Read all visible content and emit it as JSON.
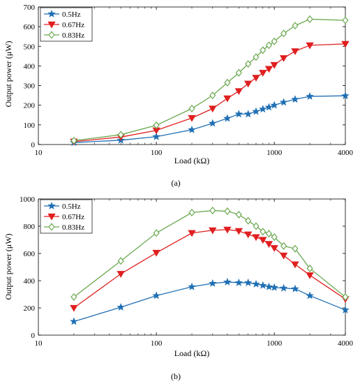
{
  "colors": {
    "s1": "#1f6fb4",
    "s2": "#e01f1f",
    "s3": "#6aa84f",
    "fill2": "#e01f1f",
    "fill3": "#ffffff"
  },
  "chart_data": [
    {
      "type": "line",
      "panel_label": "(a)",
      "xlabel": "Load (kΩ)",
      "ylabel": "Output power (μW)",
      "xscale": "log",
      "xlim": [
        10,
        4000
      ],
      "ylim": [
        0,
        700
      ],
      "xticks": [
        10,
        100,
        1000,
        4000
      ],
      "xtick_labels": [
        "10",
        "100",
        "1000",
        "4000"
      ],
      "yticks": [
        0,
        100,
        200,
        300,
        400,
        500,
        600,
        700
      ],
      "ytick_labels": [
        "0",
        "100",
        "200",
        "300",
        "400",
        "500",
        "600",
        "700"
      ],
      "legend_position": "top-left",
      "x": [
        20,
        50,
        100,
        200,
        300,
        400,
        500,
        600,
        700,
        800,
        900,
        1000,
        1200,
        1500,
        2000,
        4000
      ],
      "series": [
        {
          "name": "0.5Hz",
          "marker": "star",
          "color": "#1f6fb4",
          "values": [
            10,
            22,
            40,
            75,
            108,
            133,
            155,
            155,
            168,
            180,
            190,
            200,
            215,
            230,
            245,
            248
          ]
        },
        {
          "name": "0.67Hz",
          "marker": "triangle-down",
          "color": "#e01f1f",
          "values": [
            15,
            38,
            72,
            135,
            183,
            235,
            272,
            310,
            340,
            365,
            385,
            405,
            440,
            475,
            505,
            512
          ]
        },
        {
          "name": "0.83Hz",
          "marker": "diamond",
          "color": "#6aa84f",
          "values": [
            20,
            50,
            98,
            183,
            250,
            315,
            365,
            410,
            445,
            480,
            505,
            525,
            565,
            605,
            638,
            632
          ]
        }
      ]
    },
    {
      "type": "line",
      "panel_label": "(b)",
      "xlabel": "Load (kΩ)",
      "ylabel": "Output power (μW)",
      "xscale": "log",
      "xlim": [
        10,
        4000
      ],
      "ylim": [
        0,
        1000
      ],
      "xticks": [
        10,
        100,
        1000,
        4000
      ],
      "xtick_labels": [
        "10",
        "100",
        "1000",
        "4000"
      ],
      "yticks": [
        0,
        200,
        400,
        600,
        800,
        1000
      ],
      "ytick_labels": [
        "0",
        "200",
        "400",
        "600",
        "800",
        "1000"
      ],
      "legend_position": "top-left",
      "x": [
        20,
        50,
        100,
        200,
        300,
        400,
        500,
        600,
        700,
        800,
        900,
        1000,
        1200,
        1500,
        2000,
        4000
      ],
      "series": [
        {
          "name": "0.5Hz",
          "marker": "star",
          "color": "#1f6fb4",
          "values": [
            100,
            205,
            290,
            355,
            380,
            390,
            385,
            385,
            375,
            365,
            355,
            350,
            345,
            340,
            290,
            185
          ]
        },
        {
          "name": "0.67Hz",
          "marker": "triangle-down",
          "color": "#e01f1f",
          "values": [
            200,
            450,
            605,
            750,
            770,
            775,
            765,
            740,
            720,
            700,
            670,
            640,
            585,
            520,
            440,
            265
          ]
        },
        {
          "name": "0.83Hz",
          "marker": "diamond",
          "color": "#6aa84f",
          "values": [
            280,
            545,
            750,
            900,
            915,
            910,
            885,
            840,
            800,
            760,
            745,
            720,
            655,
            635,
            490,
            280
          ]
        }
      ]
    }
  ]
}
